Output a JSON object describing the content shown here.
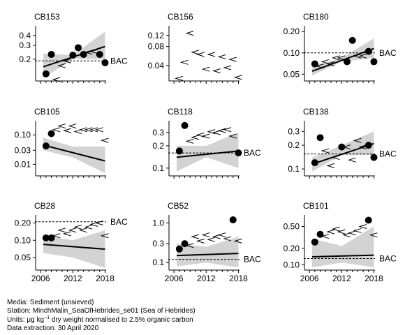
{
  "chart_data": [
    {
      "type": "scatter",
      "title": "CB153",
      "bac_label": "BAC",
      "ylim": [
        0.11,
        0.48
      ],
      "yticks": [
        "0.2",
        "0.3",
        "0.4"
      ],
      "ytick_values": [
        0.2,
        0.3,
        0.4
      ],
      "xlim": [
        2005.2,
        2018.2
      ],
      "points": [
        {
          "x": 2007,
          "y": 0.13
        },
        {
          "x": 2008,
          "y": 0.23
        },
        {
          "x": 2012,
          "y": 0.225
        },
        {
          "x": 2013,
          "y": 0.28
        },
        {
          "x": 2014,
          "y": 0.23
        },
        {
          "x": 2017,
          "y": 0.23
        },
        {
          "x": 2018,
          "y": 0.18
        }
      ],
      "less_than": [
        {
          "x": 2009,
          "y": 0.11
        },
        {
          "x": 2010,
          "y": 0.165
        },
        {
          "x": 2011,
          "y": 0.19
        },
        {
          "x": 2015,
          "y": 0.245
        },
        {
          "x": 2016,
          "y": 0.25
        }
      ],
      "trend": {
        "x": [
          2006.5,
          2018
        ],
        "y": [
          0.16,
          0.29
        ]
      },
      "band": {
        "x": [
          2006.5,
          2012,
          2018
        ],
        "lower": [
          0.115,
          0.2,
          0.2
        ],
        "upper": [
          0.235,
          0.225,
          0.45
        ]
      },
      "bac": 0.19
    },
    {
      "type": "scatter",
      "title": "CB156",
      "bac_label": "",
      "ylim": [
        0.024,
        0.15
      ],
      "yticks": [
        "0.04",
        "0.08",
        "0.12"
      ],
      "ytick_values": [
        0.04,
        0.08,
        0.12
      ],
      "xlim": [
        2005.2,
        2018.2
      ],
      "points": [],
      "less_than": [
        {
          "x": 2007,
          "y": 0.025
        },
        {
          "x": 2008,
          "y": 0.045
        },
        {
          "x": 2009,
          "y": 0.13
        },
        {
          "x": 2010,
          "y": 0.065
        },
        {
          "x": 2011,
          "y": 0.06
        },
        {
          "x": 2012,
          "y": 0.035
        },
        {
          "x": 2013,
          "y": 0.06
        },
        {
          "x": 2014,
          "y": 0.033
        },
        {
          "x": 2015,
          "y": 0.055
        },
        {
          "x": 2016,
          "y": 0.037
        },
        {
          "x": 2017,
          "y": 0.05
        },
        {
          "x": 2018,
          "y": 0.026
        }
      ],
      "trend": null,
      "band": null,
      "bac": null
    },
    {
      "type": "scatter",
      "title": "CB180",
      "bac_label": "BAC",
      "ylim": [
        0.042,
        0.215
      ],
      "yticks": [
        "0.05",
        "0.10",
        "0.20"
      ],
      "ytick_values": [
        0.05,
        0.1,
        0.2
      ],
      "xlim": [
        2005.2,
        2018.2
      ],
      "points": [
        {
          "x": 2007,
          "y": 0.07
        },
        {
          "x": 2013,
          "y": 0.075
        },
        {
          "x": 2014,
          "y": 0.15
        },
        {
          "x": 2017,
          "y": 0.105
        },
        {
          "x": 2018,
          "y": 0.075
        }
      ],
      "less_than": [
        {
          "x": 2008,
          "y": 0.065
        },
        {
          "x": 2009,
          "y": 0.075
        },
        {
          "x": 2010,
          "y": 0.07
        },
        {
          "x": 2011,
          "y": 0.085
        },
        {
          "x": 2012,
          "y": 0.085
        },
        {
          "x": 2015,
          "y": 0.09
        },
        {
          "x": 2016,
          "y": 0.09
        }
      ],
      "trend": {
        "x": [
          2006.5,
          2018
        ],
        "y": [
          0.055,
          0.115
        ]
      },
      "band": {
        "x": [
          2006.5,
          2012,
          2018
        ],
        "lower": [
          0.048,
          0.075,
          0.085
        ],
        "upper": [
          0.065,
          0.085,
          0.16
        ]
      },
      "bac": 0.1
    },
    {
      "type": "scatter",
      "title": "CB105",
      "bac_label": "",
      "ylim": [
        0.0045,
        0.23
      ],
      "yticks": [
        "0.01",
        "0.03",
        "0.10"
      ],
      "ytick_values": [
        0.01,
        0.03,
        0.1
      ],
      "xlim": [
        2005.2,
        2018.2
      ],
      "points": [
        {
          "x": 2007,
          "y": 0.042
        },
        {
          "x": 2008,
          "y": 0.11
        }
      ],
      "less_than": [
        {
          "x": 2009,
          "y": 0.15
        },
        {
          "x": 2010,
          "y": 0.2
        },
        {
          "x": 2011,
          "y": 0.14
        },
        {
          "x": 2012,
          "y": 0.2
        },
        {
          "x": 2013,
          "y": 0.13
        },
        {
          "x": 2014,
          "y": 0.15
        },
        {
          "x": 2015,
          "y": 0.15
        },
        {
          "x": 2016,
          "y": 0.15
        },
        {
          "x": 2017,
          "y": 0.15
        },
        {
          "x": 2018,
          "y": 0.065
        }
      ],
      "trend": {
        "x": [
          2006.5,
          2018
        ],
        "y": [
          0.045,
          0.013
        ]
      },
      "band": {
        "x": [
          2006.5,
          2012,
          2018
        ],
        "lower": [
          0.03,
          0.017,
          0.005
        ],
        "upper": [
          0.08,
          0.04,
          0.04
        ]
      },
      "bac": null
    },
    {
      "type": "scatter",
      "title": "CB118",
      "bac_label": "BAC",
      "ylim": [
        0.082,
        0.39
      ],
      "yticks": [
        "0.1",
        "0.2",
        "0.3"
      ],
      "ytick_values": [
        0.1,
        0.2,
        0.3
      ],
      "xlim": [
        2005.2,
        2018.2
      ],
      "points": [
        {
          "x": 2007,
          "y": 0.17
        },
        {
          "x": 2008,
          "y": 0.375
        },
        {
          "x": 2018,
          "y": 0.16
        }
      ],
      "less_than": [
        {
          "x": 2009,
          "y": 0.23
        },
        {
          "x": 2010,
          "y": 0.26
        },
        {
          "x": 2011,
          "y": 0.28
        },
        {
          "x": 2012,
          "y": 0.27
        },
        {
          "x": 2013,
          "y": 0.31
        },
        {
          "x": 2014,
          "y": 0.3
        },
        {
          "x": 2015,
          "y": 0.32
        },
        {
          "x": 2016,
          "y": 0.33
        },
        {
          "x": 2017,
          "y": 0.27
        }
      ],
      "trend": {
        "x": [
          2006.5,
          2018
        ],
        "y": [
          0.14,
          0.17
        ]
      },
      "band": {
        "x": [
          2006.5,
          2012,
          2018
        ],
        "lower": [
          0.09,
          0.14,
          0.1
        ],
        "upper": [
          0.2,
          0.2,
          0.3
        ]
      },
      "bac": 0.16
    },
    {
      "type": "scatter",
      "title": "CB138",
      "bac_label": "BAC",
      "ylim": [
        0.085,
        0.37
      ],
      "yticks": [
        "0.1",
        "0.2",
        "0.3"
      ],
      "ytick_values": [
        0.1,
        0.2,
        0.3
      ],
      "xlim": [
        2005.2,
        2018.2
      ],
      "points": [
        {
          "x": 2007,
          "y": 0.12
        },
        {
          "x": 2008,
          "y": 0.25
        },
        {
          "x": 2012,
          "y": 0.19
        },
        {
          "x": 2017,
          "y": 0.2
        },
        {
          "x": 2018,
          "y": 0.14
        }
      ],
      "less_than": [
        {
          "x": 2009,
          "y": 0.17
        },
        {
          "x": 2010,
          "y": 0.11
        },
        {
          "x": 2011,
          "y": 0.14
        },
        {
          "x": 2013,
          "y": 0.19
        },
        {
          "x": 2014,
          "y": 0.13
        },
        {
          "x": 2015,
          "y": 0.23
        },
        {
          "x": 2016,
          "y": 0.19
        }
      ],
      "trend": {
        "x": [
          2006.5,
          2018
        ],
        "y": [
          0.115,
          0.21
        ]
      },
      "band": {
        "x": [
          2006.5,
          2012,
          2018
        ],
        "lower": [
          0.093,
          0.15,
          0.15
        ],
        "upper": [
          0.14,
          0.2,
          0.3
        ]
      },
      "bac": 0.155
    },
    {
      "type": "scatter",
      "title": "CB28",
      "bac_label": "BAC",
      "ylim": [
        0.032,
        0.24
      ],
      "yticks": [
        "0.05",
        "0.10",
        "0.20"
      ],
      "ytick_values": [
        0.05,
        0.1,
        0.2
      ],
      "xlim": [
        2005.2,
        2018.2
      ],
      "points": [
        {
          "x": 2007,
          "y": 0.11
        },
        {
          "x": 2008,
          "y": 0.11
        }
      ],
      "less_than": [
        {
          "x": 2009,
          "y": 0.12
        },
        {
          "x": 2010,
          "y": 0.15
        },
        {
          "x": 2011,
          "y": 0.13
        },
        {
          "x": 2012,
          "y": 0.15
        },
        {
          "x": 2013,
          "y": 0.17
        },
        {
          "x": 2014,
          "y": 0.15
        },
        {
          "x": 2015,
          "y": 0.17
        },
        {
          "x": 2016,
          "y": 0.19
        },
        {
          "x": 2017,
          "y": 0.2
        },
        {
          "x": 2018,
          "y": 0.12
        }
      ],
      "trend": {
        "x": [
          2006.5,
          2018
        ],
        "y": [
          0.085,
          0.07
        ]
      },
      "band": {
        "x": [
          2006.5,
          2012,
          2018
        ],
        "lower": [
          0.06,
          0.05,
          0.033
        ],
        "upper": [
          0.12,
          0.1,
          0.15
        ]
      },
      "bac": 0.21
    },
    {
      "type": "scatter",
      "title": "CB52",
      "bac_label": "BAC",
      "ylim": [
        0.07,
        1.3
      ],
      "yticks": [
        "0.1",
        "0.3",
        "1.0"
      ],
      "ytick_values": [
        0.1,
        0.3,
        1.0
      ],
      "xlim": [
        2005.2,
        2018.2
      ],
      "points": [
        {
          "x": 2007,
          "y": 0.22
        },
        {
          "x": 2008,
          "y": 0.3
        },
        {
          "x": 2017,
          "y": 1.2
        }
      ],
      "less_than": [
        {
          "x": 2009,
          "y": 0.27
        },
        {
          "x": 2010,
          "y": 0.45
        },
        {
          "x": 2011,
          "y": 0.35
        },
        {
          "x": 2012,
          "y": 0.5
        },
        {
          "x": 2013,
          "y": 0.38
        },
        {
          "x": 2014,
          "y": 0.45
        },
        {
          "x": 2015,
          "y": 0.5
        },
        {
          "x": 2016,
          "y": 0.4
        },
        {
          "x": 2018,
          "y": 0.35
        }
      ],
      "trend": {
        "x": [
          2006.5,
          2018
        ],
        "y": [
          0.15,
          0.17
        ]
      },
      "band": {
        "x": [
          2006.5,
          2012,
          2018
        ],
        "lower": [
          0.08,
          0.1,
          0.075
        ],
        "upper": [
          0.3,
          0.25,
          0.45
        ]
      },
      "bac": 0.12
    },
    {
      "type": "scatter",
      "title": "CB101",
      "bac_label": "BAC",
      "ylim": [
        0.085,
        0.7
      ],
      "yticks": [
        "0.10",
        "0.20",
        "0.50"
      ],
      "ytick_values": [
        0.1,
        0.2,
        0.5
      ],
      "xlim": [
        2005.2,
        2018.2
      ],
      "points": [
        {
          "x": 2007,
          "y": 0.26
        },
        {
          "x": 2008,
          "y": 0.36
        },
        {
          "x": 2017,
          "y": 0.65
        }
      ],
      "less_than": [
        {
          "x": 2009,
          "y": 0.33
        },
        {
          "x": 2010,
          "y": 0.4
        },
        {
          "x": 2011,
          "y": 0.45
        },
        {
          "x": 2012,
          "y": 0.4
        },
        {
          "x": 2013,
          "y": 0.35
        },
        {
          "x": 2014,
          "y": 0.38
        },
        {
          "x": 2015,
          "y": 0.42
        },
        {
          "x": 2016,
          "y": 0.5
        },
        {
          "x": 2018,
          "y": 0.35
        }
      ],
      "trend": {
        "x": [
          2006.5,
          2018
        ],
        "y": [
          0.14,
          0.15
        ]
      },
      "band": {
        "x": [
          2006.5,
          2012,
          2018
        ],
        "lower": [
          0.09,
          0.11,
          0.09
        ],
        "upper": [
          0.3,
          0.22,
          0.5
        ]
      },
      "bac": 0.13
    }
  ],
  "x_axis": {
    "ticks": [
      "2006",
      "2012",
      "2018"
    ],
    "tick_values": [
      2006,
      2012,
      2018
    ]
  },
  "footer": {
    "media": "Media: Sediment (unsieved)",
    "station": "Station: MinchMalin_SeaOfHebrides_se01 (Sea of Hebrides)",
    "units_prefix": "Units:  μg kg",
    "units_exponent": "−1",
    "units_suffix": " dry weight normalised to 2.5% organic carbon",
    "extraction": "Data extraction: 30 April 2020"
  },
  "colors": {
    "band": "#d3d3d3",
    "line": "#000000",
    "point": "#000000"
  }
}
